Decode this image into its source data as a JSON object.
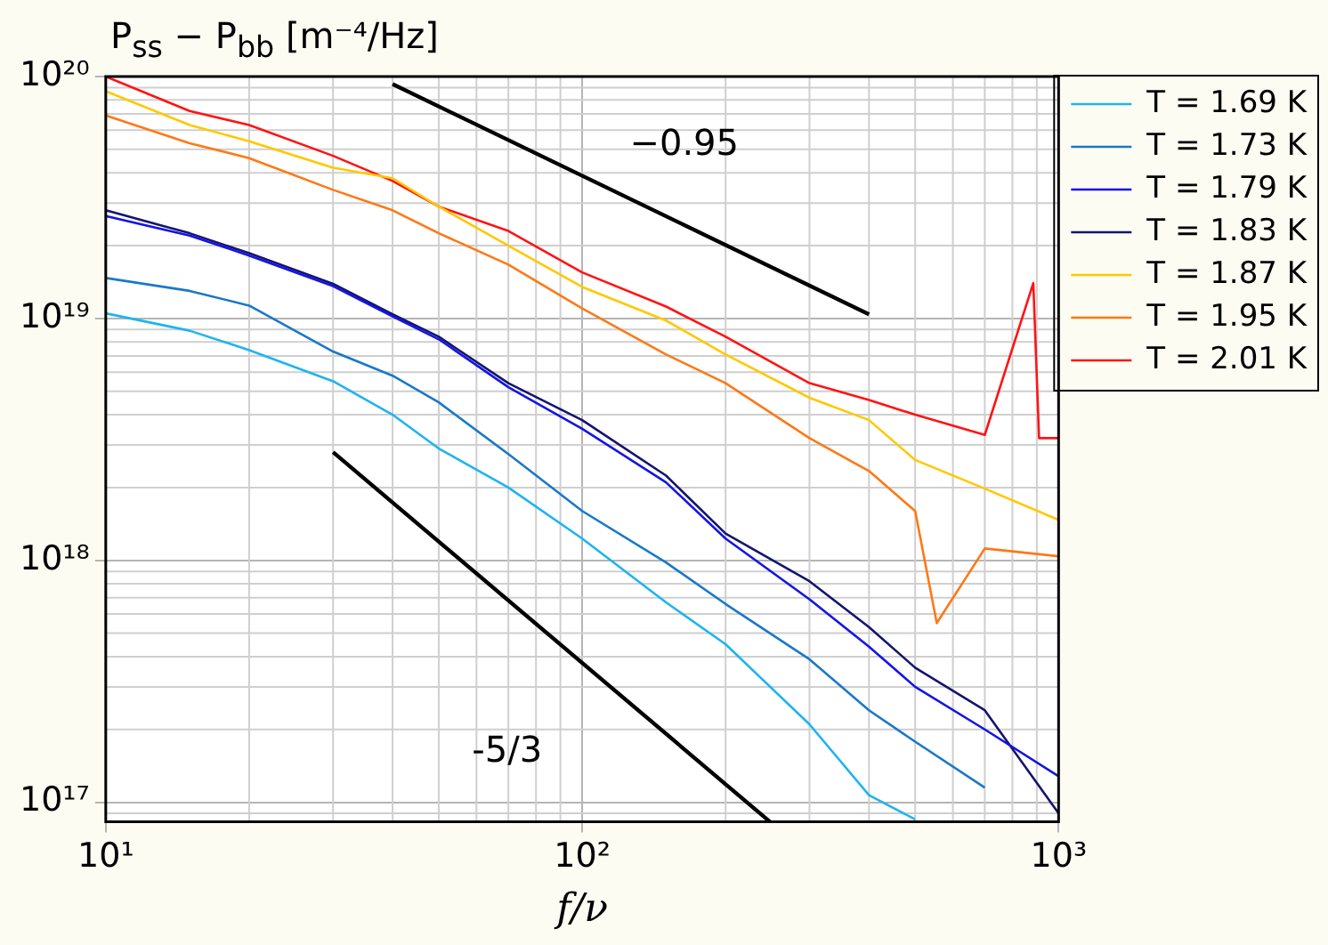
{
  "chart_data": {
    "type": "line",
    "ylabel": "P$_{ss}$ − P$_{bb}$ [m⁻⁴/Hz]",
    "xlabel": "f/ν",
    "log": "xy",
    "grid": true,
    "legend": "right",
    "marker": "none",
    "line_style": "solid",
    "xlim": [
      10,
      1000
    ],
    "xticks": [
      {
        "value": 10,
        "label": "10¹"
      },
      {
        "value": 100,
        "label": "10²"
      },
      {
        "value": 1000,
        "label": "10³"
      }
    ],
    "ylim": [
      8.3e+16,
      1e+20
    ],
    "yticks": [
      {
        "value": 1e+17,
        "label": "10¹⁷"
      },
      {
        "value": 1e+18,
        "label": "10¹⁸"
      },
      {
        "value": 1e+19,
        "label": "10¹⁹"
      },
      {
        "value": 1e+20,
        "label": "10²⁰"
      }
    ],
    "x": [
      10,
      15,
      20,
      30,
      40,
      50,
      70,
      100,
      150,
      200,
      300,
      400,
      500,
      700,
      1000
    ],
    "series": [
      {
        "name": "T = 1.69 K",
        "color": "#1eb4f0",
        "values": [
          1.05e+19,
          8.9e+18,
          7.4e+18,
          5.5e+18,
          4e+18,
          2.9e+18,
          2e+18,
          1.23e+18,
          6.7e+17,
          4.5e+17,
          2.1e+17,
          1.07e+17,
          8.5e+16,
          null,
          null
        ]
      },
      {
        "name": "T = 1.73 K",
        "color": "#1a78c8",
        "values": [
          1.47e+19,
          1.3e+19,
          1.13e+19,
          7.3e+18,
          5.8e+18,
          4.5e+18,
          2.75e+18,
          1.6e+18,
          9.8e+17,
          6.6e+17,
          3.9e+17,
          2.4e+17,
          1.78e+17,
          1.15e+17,
          null
        ]
      },
      {
        "name": "T = 1.79 K",
        "color": "#1414e6",
        "values": [
          2.65e+19,
          2.2e+19,
          1.82e+19,
          1.36e+19,
          1.02e+19,
          8.2e+18,
          5.2e+18,
          3.5e+18,
          2.1e+18,
          1.23e+18,
          6.9e+17,
          4.4e+17,
          3e+17,
          2e+17,
          1.28e+17
        ]
      },
      {
        "name": "T = 1.83 K",
        "color": "#14146e",
        "values": [
          2.8e+19,
          2.25e+19,
          1.86e+19,
          1.39e+19,
          1.04e+19,
          8.4e+18,
          5.4e+18,
          3.8e+18,
          2.24e+18,
          1.29e+18,
          8.2e+17,
          5.3e+17,
          3.6e+17,
          2.4e+17,
          9e+16
        ]
      },
      {
        "name": "T = 1.87 K",
        "color": "#ffc800",
        "values": [
          8.7e+19,
          6.3e+19,
          5.4e+19,
          4.2e+19,
          3.8e+19,
          2.9e+19,
          2e+19,
          1.35e+19,
          9.8e+18,
          7.1e+18,
          4.7e+18,
          3.8e+18,
          2.6e+18,
          1.98e+18,
          1.47e+18
        ]
      },
      {
        "name": "T = 1.95 K",
        "color": "#ff7814",
        "x": [
          10,
          15,
          20,
          30,
          40,
          50,
          70,
          100,
          150,
          200,
          300,
          400,
          500,
          555,
          700,
          1000
        ],
        "values": [
          6.9e+19,
          5.3e+19,
          4.6e+19,
          3.4e+19,
          2.8e+19,
          2.25e+19,
          1.67e+19,
          1.1e+19,
          7.1e+18,
          5.4e+18,
          3.2e+18,
          2.34e+18,
          1.6e+18,
          5.5e+17,
          1.12e+18,
          1.04e+18
        ]
      },
      {
        "name": "T = 2.01 K",
        "color": "#ff1414",
        "x": [
          10,
          15,
          20,
          30,
          40,
          50,
          70,
          100,
          150,
          200,
          300,
          400,
          500,
          700,
          885,
          910,
          1000
        ],
        "values": [
          1e+20,
          7.2e+19,
          6.3e+19,
          4.7e+19,
          3.7e+19,
          2.9e+19,
          2.3e+19,
          1.55e+19,
          1.12e+19,
          8.4e+18,
          5.4e+18,
          4.6e+18,
          4e+18,
          3.3e+18,
          1.4e+19,
          3.2e+18,
          3.2e+18
        ]
      },
      {
        "color": "#000000",
        "x": [
          40,
          400
        ],
        "values": [
          9.3e+19,
          1.04e+19
        ]
      },
      {
        "color": "#000000",
        "x": [
          30,
          248
        ],
        "values": [
          2.8e+18,
          8.3e+16
        ]
      }
    ],
    "annotations": [
      "−0.95",
      "-5/3"
    ]
  }
}
